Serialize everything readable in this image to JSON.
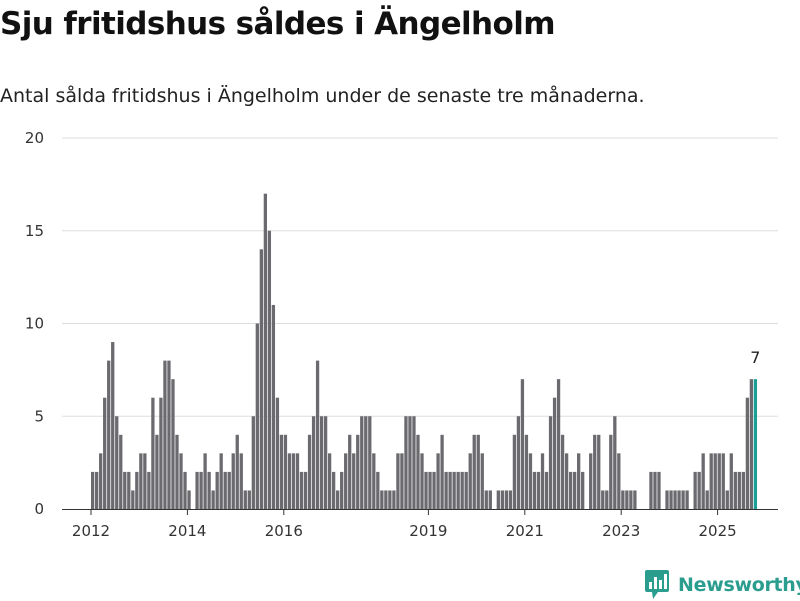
{
  "title": "Sju fritidshus såldes i Ängelholm",
  "subtitle": "Antal sålda fritidshus i Ängelholm under de senaste tre månaderna.",
  "brand": "Newsworthy",
  "colors": {
    "bar": "#6b6a6f",
    "highlight": "#1a9e95",
    "grid": "#dddddd",
    "brand": "#2a9d8f"
  },
  "chart_data": {
    "type": "bar",
    "ylim": [
      0,
      20
    ],
    "yticks": [
      0,
      5,
      10,
      15,
      20
    ],
    "xticks": [
      "2012",
      "2014",
      "2016",
      "2019",
      "2021",
      "2023",
      "2025"
    ],
    "start": "2012-01",
    "frequency": "monthly",
    "last_label": "7",
    "values": [
      2,
      2,
      3,
      6,
      8,
      9,
      5,
      4,
      2,
      2,
      1,
      2,
      3,
      3,
      2,
      6,
      4,
      6,
      8,
      8,
      7,
      4,
      3,
      2,
      1,
      0,
      2,
      2,
      3,
      2,
      1,
      2,
      3,
      2,
      2,
      3,
      4,
      3,
      1,
      1,
      5,
      10,
      14,
      17,
      15,
      11,
      6,
      4,
      4,
      3,
      3,
      3,
      2,
      2,
      4,
      5,
      8,
      5,
      5,
      3,
      2,
      1,
      2,
      3,
      4,
      3,
      4,
      5,
      5,
      5,
      3,
      2,
      1,
      1,
      1,
      1,
      3,
      3,
      5,
      5,
      5,
      4,
      3,
      2,
      2,
      2,
      3,
      4,
      2,
      2,
      2,
      2,
      2,
      2,
      3,
      4,
      4,
      3,
      1,
      1,
      0,
      1,
      1,
      1,
      1,
      4,
      5,
      7,
      4,
      3,
      2,
      2,
      3,
      2,
      5,
      6,
      7,
      4,
      3,
      2,
      2,
      3,
      2,
      0,
      3,
      4,
      4,
      1,
      1,
      4,
      5,
      3,
      1,
      1,
      1,
      1,
      0,
      0,
      0,
      2,
      2,
      2,
      0,
      1,
      1,
      1,
      1,
      1,
      1,
      0,
      2,
      2,
      3,
      1,
      3,
      3,
      3,
      3,
      1,
      3,
      2,
      2,
      2,
      6,
      7,
      7
    ]
  }
}
